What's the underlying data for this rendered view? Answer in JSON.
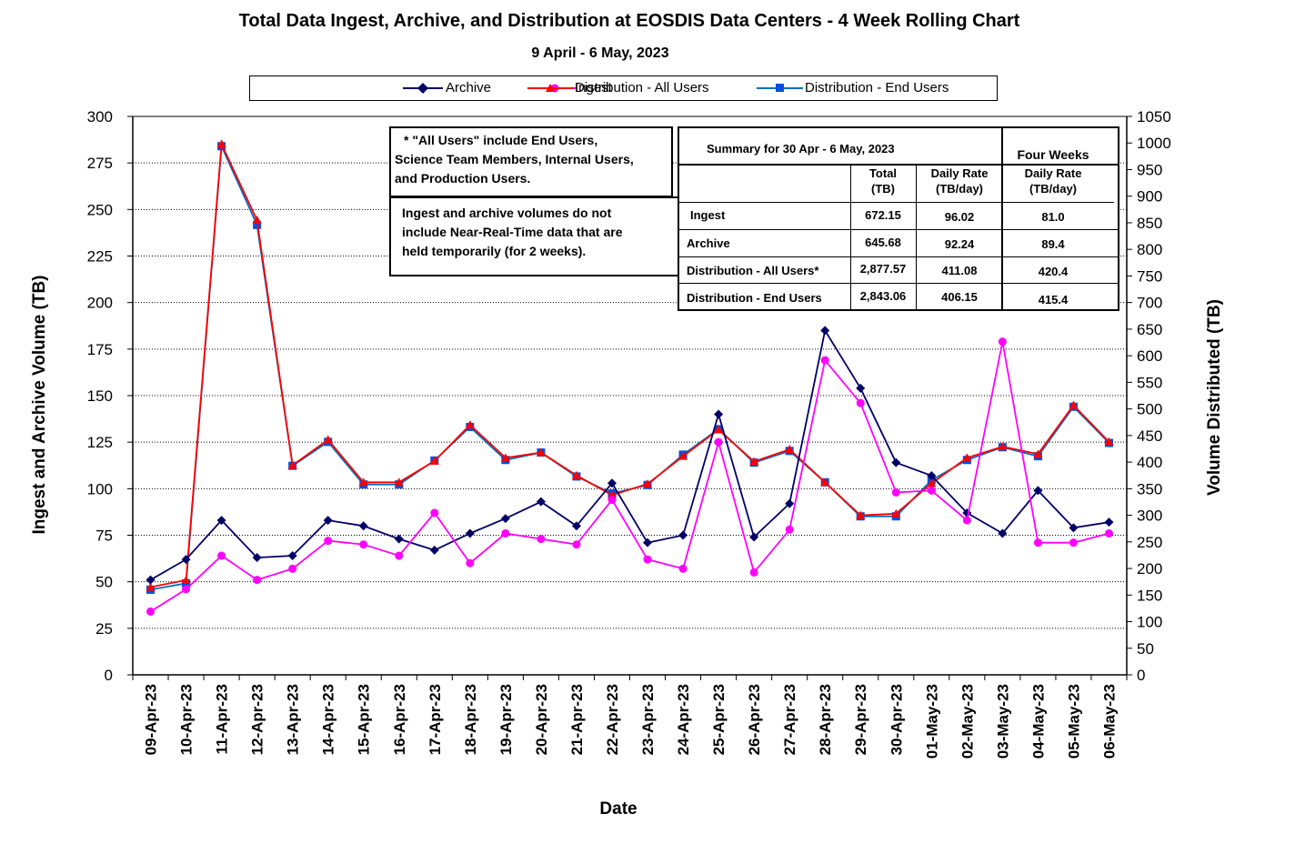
{
  "chart_data": {
    "type": "line",
    "title": "Total Data Ingest, Archive, and  Distribution at EOSDIS Data Centers - 4 Week Rolling Chart",
    "subtitle": "9 April  - 6 May, 2023",
    "xlabel": "Date",
    "ylabel_left": "Ingest and Archive Volume (TB)",
    "ylabel_right": "Volume Distributed (TB)",
    "ylim_left": [
      0,
      300
    ],
    "ylim_right": [
      0,
      1050
    ],
    "yticks_left": [
      "0",
      "25",
      "50",
      "75",
      "100",
      "125",
      "150",
      "175",
      "200",
      "225",
      "250",
      "275",
      "300"
    ],
    "yticks_right": [
      "0",
      "50",
      "100",
      "150",
      "200",
      "250",
      "300",
      "350",
      "400",
      "450",
      "500",
      "550",
      "600",
      "650",
      "700",
      "750",
      "800",
      "850",
      "900",
      "950",
      "1000",
      "1050"
    ],
    "grid": "horizontal dotted",
    "legend_position": "top",
    "categories": [
      "09-Apr-23",
      "10-Apr-23",
      "11-Apr-23",
      "12-Apr-23",
      "13-Apr-23",
      "14-Apr-23",
      "15-Apr-23",
      "16-Apr-23",
      "17-Apr-23",
      "18-Apr-23",
      "19-Apr-23",
      "20-Apr-23",
      "21-Apr-23",
      "22-Apr-23",
      "23-Apr-23",
      "24-Apr-23",
      "25-Apr-23",
      "26-Apr-23",
      "27-Apr-23",
      "28-Apr-23",
      "29-Apr-23",
      "30-Apr-23",
      "01-May-23",
      "02-May-23",
      "03-May-23",
      "04-May-23",
      "05-May-23",
      "06-May-23"
    ],
    "series": [
      {
        "name": "Ingest",
        "axis": "left",
        "color": "#ff00ff",
        "marker": "circle",
        "values": [
          34,
          46,
          64,
          51,
          57,
          72,
          70,
          64,
          87,
          60,
          76,
          73,
          70,
          94,
          62,
          57,
          125,
          55,
          78,
          169,
          146,
          98,
          99,
          83,
          179,
          71,
          71,
          76
        ]
      },
      {
        "name": "Archive",
        "axis": "left",
        "color": "#000066",
        "marker": "diamond",
        "values": [
          51,
          62,
          83,
          63,
          64,
          83,
          80,
          73,
          67,
          76,
          84,
          93,
          80,
          103,
          71,
          75,
          140,
          74,
          92,
          185,
          154,
          114,
          107,
          87,
          76,
          99,
          79,
          82
        ]
      },
      {
        "name": "Distribution - All Users",
        "axis": "right",
        "color": "#ff0000",
        "marker": "triangle",
        "values": [
          165,
          178,
          998,
          855,
          394,
          442,
          362,
          362,
          402,
          470,
          408,
          418,
          375,
          338,
          359,
          411,
          461,
          401,
          424,
          362,
          300,
          303,
          360,
          408,
          429,
          415,
          507,
          438
        ]
      },
      {
        "name": "Distribution - End Users",
        "axis": "right",
        "color": "#0070c0",
        "marker": "square",
        "values": [
          160,
          172,
          994,
          846,
          393,
          438,
          358,
          358,
          403,
          466,
          404,
          418,
          373,
          341,
          357,
          414,
          462,
          399,
          421,
          362,
          298,
          298,
          366,
          404,
          428,
          411,
          504,
          436
        ]
      }
    ]
  },
  "legend": {
    "ingest": "Ingest",
    "archive": "Archive",
    "dist_all": "Distribution - All Users",
    "dist_end": "Distribution - End Users"
  },
  "notes": {
    "line1": "* \"All Users\" include End Users,",
    "line2": "Science Team Members,  Internal Users,",
    "line3": "and Production Users.",
    "line4": "Ingest and archive volumes do not",
    "line5": "include Near-Real-Time data that are",
    "line6": "held temporarily (for 2 weeks)."
  },
  "summary": {
    "heading": "Summary  for  30 Apr  - 6 May, 2023",
    "four_weeks": "Four Weeks",
    "col_total_1": "Total",
    "col_total_2": "(TB)",
    "col_daily_1": "Daily Rate",
    "col_daily_2": "(TB/day)",
    "col_four_1": "Daily Rate",
    "col_four_2": "(TB/day)",
    "rows": [
      {
        "label": "Ingest",
        "total": "672.15",
        "daily": "96.02",
        "four": "81.0"
      },
      {
        "label": "Archive",
        "total": "645.68",
        "daily": "92.24",
        "four": "89.4"
      },
      {
        "label": "Distribution - All Users*",
        "total": "2,877.57",
        "daily": "411.08",
        "four": "420.4"
      },
      {
        "label": "Distribution - End Users",
        "total": "2,843.06",
        "daily": "406.15",
        "four": "415.4"
      }
    ]
  }
}
